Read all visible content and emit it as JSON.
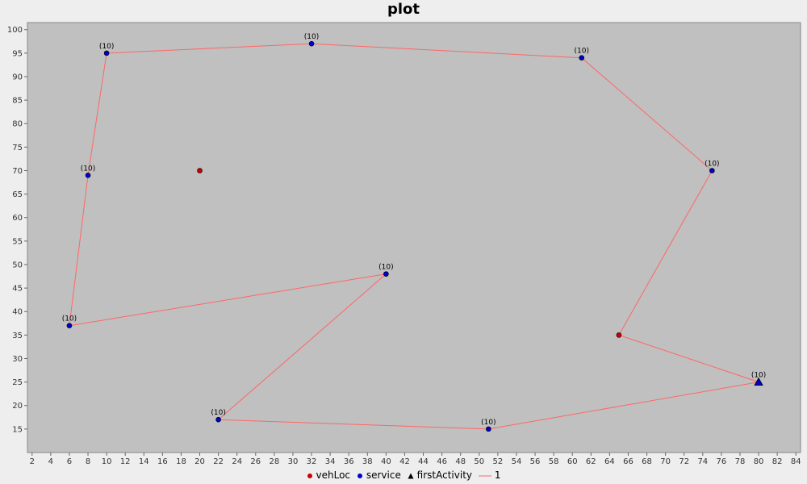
{
  "chart_data": {
    "type": "scatter",
    "title": "plot",
    "xlabel": "",
    "ylabel": "",
    "xlim": [
      1.5,
      84.5
    ],
    "ylim": [
      10,
      101.5
    ],
    "x_ticks": [
      2,
      4,
      6,
      8,
      10,
      12,
      14,
      16,
      18,
      20,
      22,
      24,
      26,
      28,
      30,
      32,
      34,
      36,
      38,
      40,
      42,
      44,
      46,
      48,
      50,
      52,
      54,
      56,
      58,
      60,
      62,
      64,
      66,
      68,
      70,
      72,
      74,
      76,
      78,
      80,
      82,
      84
    ],
    "y_ticks": [
      15,
      20,
      25,
      30,
      35,
      40,
      45,
      50,
      55,
      60,
      65,
      70,
      75,
      80,
      85,
      90,
      95,
      100
    ],
    "plot_background": "#c0c0c0",
    "grid": false,
    "legend_position": "bottom-center",
    "series": [
      {
        "name": "vehLoc",
        "marker": "circle",
        "color": "#cc0000",
        "points": [
          {
            "x": 20,
            "y": 70
          },
          {
            "x": 65,
            "y": 35
          }
        ]
      },
      {
        "name": "service",
        "marker": "circle",
        "color": "#0000cc",
        "points": [
          {
            "x": 10,
            "y": 95,
            "label": "(10)"
          },
          {
            "x": 32,
            "y": 97,
            "label": "(10)"
          },
          {
            "x": 61,
            "y": 94,
            "label": "(10)"
          },
          {
            "x": 75,
            "y": 70,
            "label": "(10)"
          },
          {
            "x": 8,
            "y": 69,
            "label": "(10)"
          },
          {
            "x": 40,
            "y": 48,
            "label": "(10)"
          },
          {
            "x": 6,
            "y": 37,
            "label": "(10)"
          },
          {
            "x": 22,
            "y": 17,
            "label": "(10)"
          },
          {
            "x": 51,
            "y": 15,
            "label": "(10)"
          }
        ]
      },
      {
        "name": "firstActivity",
        "marker": "triangle",
        "color": "#0000cc",
        "points": [
          {
            "x": 80,
            "y": 25,
            "label": "(10)"
          }
        ]
      },
      {
        "name": "1",
        "marker": "line",
        "color": "#ff6666",
        "points": [
          {
            "x": 65,
            "y": 35
          },
          {
            "x": 80,
            "y": 25
          },
          {
            "x": 51,
            "y": 15
          },
          {
            "x": 22,
            "y": 17
          },
          {
            "x": 40,
            "y": 48
          },
          {
            "x": 6,
            "y": 37
          },
          {
            "x": 8,
            "y": 69
          },
          {
            "x": 10,
            "y": 95
          },
          {
            "x": 32,
            "y": 97
          },
          {
            "x": 61,
            "y": 94
          },
          {
            "x": 75,
            "y": 70
          },
          {
            "x": 65,
            "y": 35
          }
        ]
      }
    ]
  }
}
